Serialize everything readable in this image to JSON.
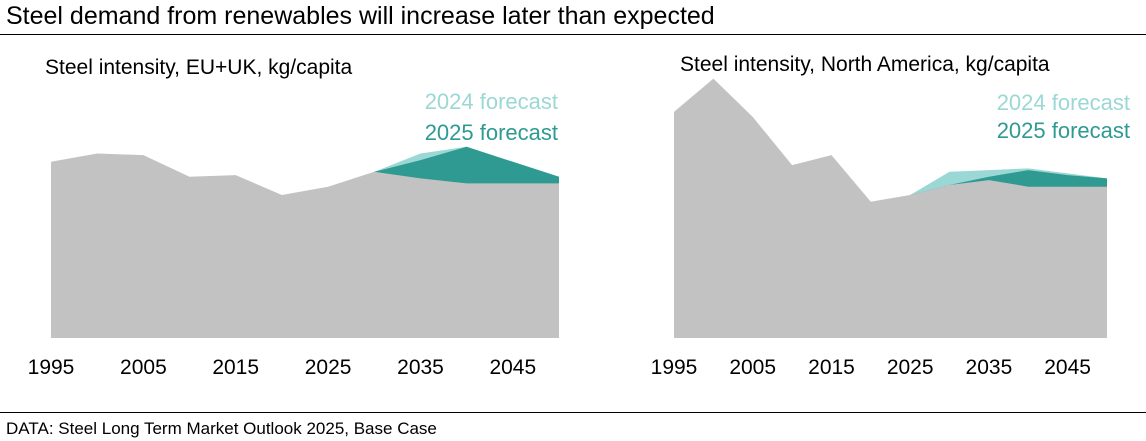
{
  "title": "Steel demand from renewables will increase later than expected",
  "source": "DATA: Steel Long Term Market Outlook 2025, Base Case",
  "colors": {
    "base": "#c2c2c2",
    "forecast_2024": "#9bd8d5",
    "forecast_2025": "#2e9a92"
  },
  "chart_data": [
    {
      "type": "area",
      "title": "Steel intensity, EU+UK, kg/capita",
      "xlabel": "",
      "ylabel": "",
      "x_ticks": [
        "1995",
        "2005",
        "2015",
        "2025",
        "2035",
        "2045"
      ],
      "xlim": [
        1995,
        2050
      ],
      "ylim": [
        0,
        160
      ],
      "grid": false,
      "legend": "top-right",
      "series": [
        {
          "name": "2024 forecast",
          "x": [
            2030,
            2035,
            2040,
            2045,
            2050
          ],
          "values": [
            100,
            111,
            115,
            106,
            97
          ]
        },
        {
          "name": "2025 forecast",
          "x": [
            2030,
            2035,
            2040,
            2045,
            2050
          ],
          "values": [
            100,
            107,
            115,
            106,
            97
          ]
        },
        {
          "name": "",
          "x": [
            1995,
            2000,
            2005,
            2010,
            2015,
            2020,
            2025,
            2030,
            2035,
            2040,
            2045,
            2050
          ],
          "values": [
            106,
            111,
            110,
            97,
            98,
            86,
            91,
            100,
            96,
            93,
            93,
            93
          ]
        }
      ]
    },
    {
      "type": "area",
      "title": "Steel intensity, North America, kg/capita",
      "xlabel": "",
      "ylabel": "",
      "x_ticks": [
        "1995",
        "2005",
        "2015",
        "2025",
        "2035",
        "2045"
      ],
      "xlim": [
        1995,
        2050
      ],
      "ylim": [
        0,
        160
      ],
      "grid": false,
      "legend": "top-right",
      "series": [
        {
          "name": "2024 forecast",
          "x": [
            2025,
            2030,
            2035,
            2040,
            2045,
            2050
          ],
          "values": [
            86,
            100,
            101,
            102,
            99,
            96
          ]
        },
        {
          "name": "2025 forecast",
          "x": [
            2025,
            2030,
            2035,
            2040,
            2045,
            2050
          ],
          "values": [
            86,
            92,
            97,
            101,
            98,
            96
          ]
        },
        {
          "name": "",
          "x": [
            1995,
            2000,
            2005,
            2010,
            2015,
            2020,
            2025,
            2030,
            2035,
            2040,
            2045,
            2050
          ],
          "values": [
            136,
            156,
            133,
            104,
            110,
            82,
            86,
            92,
            95,
            91,
            91,
            91
          ]
        }
      ]
    }
  ]
}
